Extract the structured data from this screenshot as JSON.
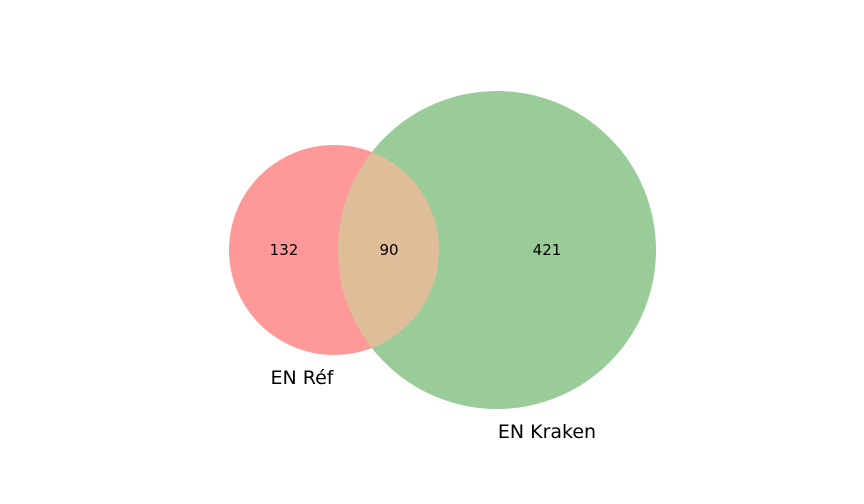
{
  "diagram": {
    "type": "venn2",
    "sets": [
      {
        "label": "EN Réf",
        "only_count": "132",
        "color": "#ff9999"
      },
      {
        "label": "EN Kraken",
        "only_count": "421",
        "color": "#99cc99"
      }
    ],
    "intersection": {
      "count": "90",
      "color": "#e0bd99"
    }
  }
}
